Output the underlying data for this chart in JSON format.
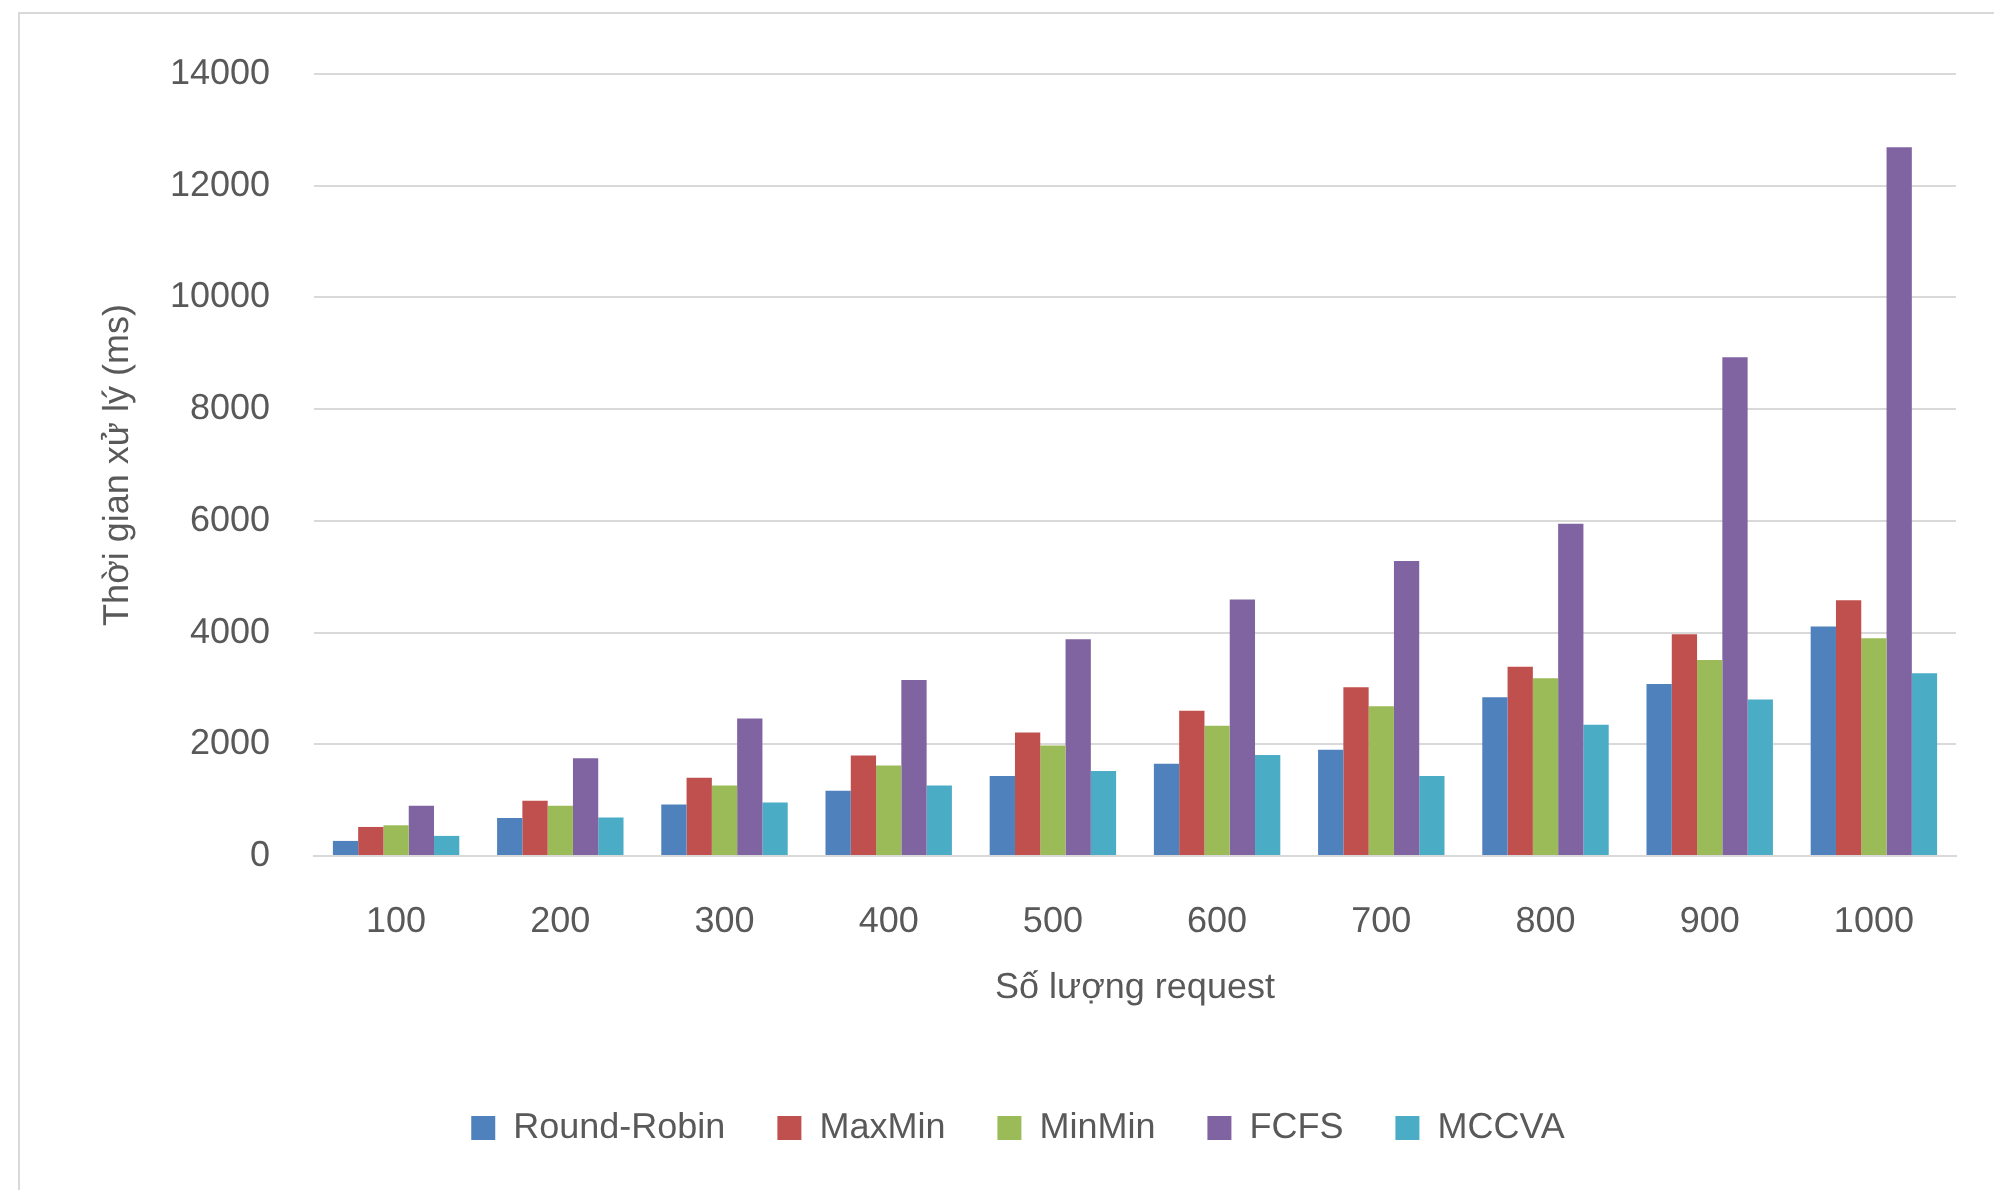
{
  "chart_data": {
    "type": "bar",
    "xlabel": "Số lượng request",
    "ylabel": "Thời gian xử lý (ms)",
    "categories": [
      "100",
      "200",
      "300",
      "400",
      "500",
      "600",
      "700",
      "800",
      "900",
      "1000"
    ],
    "series": [
      {
        "name": "Round-Robin",
        "color": "#4f81bd",
        "values": [
          270,
          680,
          920,
          1170,
          1430,
          1650,
          1900,
          2840,
          3080,
          4110
        ]
      },
      {
        "name": "MaxMin",
        "color": "#c0504d",
        "values": [
          520,
          990,
          1400,
          1800,
          2210,
          2600,
          3020,
          3390,
          3970,
          4580
        ]
      },
      {
        "name": "MinMin",
        "color": "#9bbb59",
        "values": [
          550,
          900,
          1260,
          1620,
          1980,
          2330,
          2680,
          3180,
          3510,
          3900
        ]
      },
      {
        "name": "FCFS",
        "color": "#8064a2",
        "values": [
          900,
          1750,
          2460,
          3150,
          3880,
          4590,
          5280,
          5950,
          8930,
          12690
        ]
      },
      {
        "name": "MCCVA",
        "color": "#4bacc6",
        "values": [
          360,
          690,
          960,
          1260,
          1520,
          1810,
          1430,
          2350,
          2800,
          3270
        ]
      }
    ],
    "ylim": [
      0,
      14000
    ],
    "yticks": [
      0,
      2000,
      4000,
      6000,
      8000,
      10000,
      12000,
      14000
    ],
    "grid": "y",
    "legend": "bottom"
  }
}
